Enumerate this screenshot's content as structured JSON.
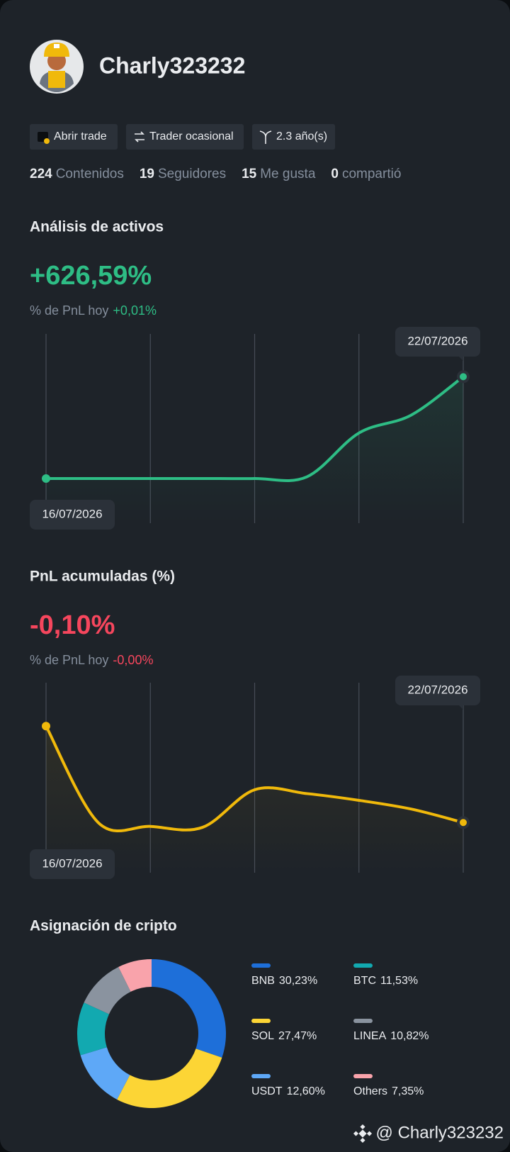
{
  "profile": {
    "username": "Charly323232",
    "tags": [
      "Abrir trade",
      "Trader ocasional",
      "2.3 año(s)"
    ],
    "stats": [
      {
        "count": "224",
        "label": "Contenidos"
      },
      {
        "count": "19",
        "label": "Seguidores"
      },
      {
        "count": "15",
        "label": "Me gusta"
      },
      {
        "count": "0",
        "label": "compartió"
      }
    ]
  },
  "sections": [
    {
      "title": "Análisis de activos",
      "headline": "+626,59%",
      "subtitle": "% de PnL hoy",
      "today": "+0,01%",
      "tone": "#2ebd85",
      "chart_data": {
        "type": "line",
        "categories": [
          "16/07/2026",
          null,
          null,
          null,
          null,
          null,
          null,
          null,
          "22/07/2026"
        ],
        "series": [
          {
            "color": "#2ebd85",
            "values": [
              0,
              0,
              0,
              0,
              0,
              10,
              280,
              390,
              626.59
            ]
          }
        ],
        "ylim": [
          -275,
          890
        ]
      }
    },
    {
      "title": "PnL acumuladas (%)",
      "headline": "-0,10%",
      "subtitle": "% de PnL hoy",
      "today": "-0,00%",
      "tone": "#f6465d",
      "chart_data": {
        "type": "line",
        "categories": [
          "16/07/2026",
          null,
          null,
          null,
          null,
          null,
          null,
          null,
          "22/07/2026"
        ],
        "series": [
          {
            "color": "#f0b90b",
            "values": [
              0,
              -0.1,
              -0.104,
              -0.105,
              -0.066,
              -0.07,
              -0.077,
              -0.086,
              -0.1
            ]
          }
        ],
        "ylim": [
          -0.152,
          0.045
        ]
      }
    },
    {
      "title": "Asignación de cripto",
      "chart_data": {
        "type": "pie",
        "categories": [
          "BNB",
          "SOL",
          "USDT",
          "BTC",
          "LINEA",
          "Others"
        ],
        "values": [
          30.23,
          27.47,
          12.6,
          11.53,
          10.82,
          7.35
        ],
        "value_labels": [
          "30,23%",
          "27,47%",
          "12,60%",
          "11,53%",
          "10,82%",
          "7,35%"
        ],
        "colors": [
          "#1e6fd9",
          "#fcd535",
          "#5ea8f7",
          "#12a9b0",
          "#8a939f",
          "#f9a3ab"
        ]
      }
    }
  ],
  "watermark": "@ Charly323232"
}
